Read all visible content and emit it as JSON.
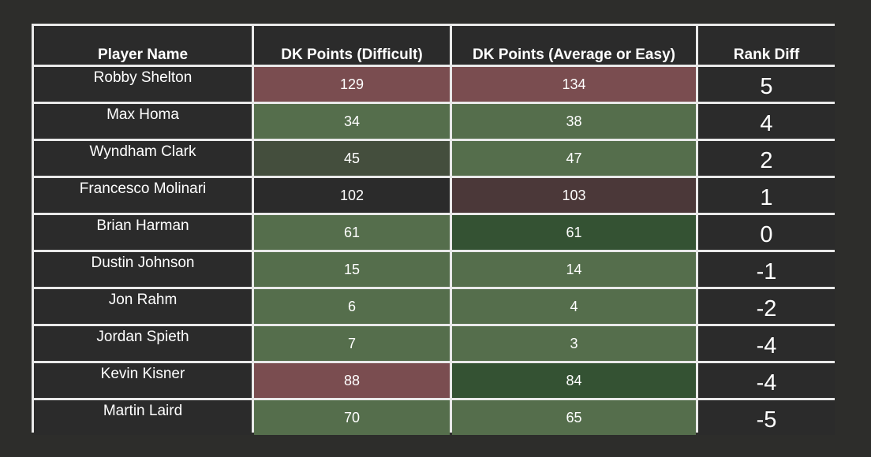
{
  "headers": {
    "player": "Player Name",
    "difficult": "DK Points (Difficult)",
    "average": "DK Points (Average or Easy)",
    "rank_diff": "Rank Diff"
  },
  "rows": [
    {
      "name": "Robby Shelton",
      "difficult": "129",
      "average": "134",
      "rank_diff": "5",
      "difficult_color": "#7a4d50",
      "average_color": "#7a4d50"
    },
    {
      "name": "Max Homa",
      "difficult": "34",
      "average": "38",
      "rank_diff": "4",
      "difficult_color": "#556e4c",
      "average_color": "#556e4c"
    },
    {
      "name": "Wyndham Clark",
      "difficult": "45",
      "average": "47",
      "rank_diff": "2",
      "difficult_color": "#444e3d",
      "average_color": "#556e4c"
    },
    {
      "name": "Francesco Molinari",
      "difficult": "102",
      "average": "103",
      "rank_diff": "1",
      "difficult_color": "#2b2b2b",
      "average_color": "#4b3839"
    },
    {
      "name": "Brian Harman",
      "difficult": "61",
      "average": "61",
      "rank_diff": "0",
      "difficult_color": "#556e4c",
      "average_color": "#345233"
    },
    {
      "name": "Dustin Johnson",
      "difficult": "15",
      "average": "14",
      "rank_diff": "-1",
      "difficult_color": "#556e4c",
      "average_color": "#556e4c"
    },
    {
      "name": "Jon Rahm",
      "difficult": "6",
      "average": "4",
      "rank_diff": "-2",
      "difficult_color": "#556e4c",
      "average_color": "#556e4c"
    },
    {
      "name": "Jordan Spieth",
      "difficult": "7",
      "average": "3",
      "rank_diff": "-4",
      "difficult_color": "#556e4c",
      "average_color": "#556e4c"
    },
    {
      "name": "Kevin Kisner",
      "difficult": "88",
      "average": "84",
      "rank_diff": "-4",
      "difficult_color": "#7a4d50",
      "average_color": "#345233"
    },
    {
      "name": "Martin Laird",
      "difficult": "70",
      "average": "65",
      "rank_diff": "-5",
      "difficult_color": "#556e4c",
      "average_color": "#556e4c"
    }
  ],
  "colors": {
    "background": "#2d2d2b",
    "grid_line": "#e9e9e9",
    "cell_default": "#2b2b2b"
  }
}
